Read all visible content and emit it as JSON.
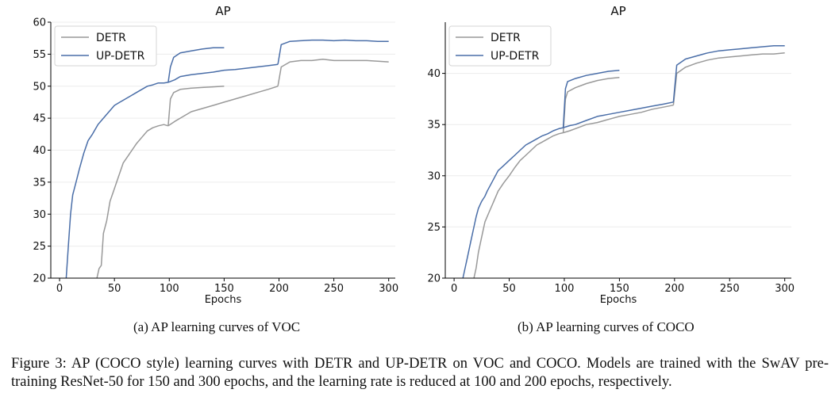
{
  "charts": {
    "a": {
      "caption": "(a) AP learning curves of VOC"
    },
    "b": {
      "caption": "(b) AP learning curves of COCO"
    }
  },
  "figure_caption": "Figure 3: AP (COCO style) learning curves with DETR and UP-DETR on VOC and COCO. Models are trained with the SwAV pre-training ResNet-50 for 150 and 300 epochs, and the learning rate is reduced at 100 and 200 epochs, respectively.",
  "colors": {
    "DETR": "#999999",
    "UP-DETR": "#4a6ea8"
  },
  "chart_data": [
    {
      "type": "line",
      "title": "AP",
      "xlabel": "Epochs",
      "ylabel": "",
      "xlim": [
        -8,
        306
      ],
      "ylim": [
        20,
        60
      ],
      "xticks": [
        0,
        50,
        100,
        150,
        200,
        250,
        300
      ],
      "yticks": [
        20,
        25,
        30,
        35,
        40,
        45,
        50,
        55,
        60
      ],
      "grid": "horizontal",
      "legend": "top-left",
      "series": [
        {
          "name": "DETR",
          "color": "#999999",
          "x": [
            34,
            36,
            38,
            40,
            43,
            46,
            50,
            54,
            58,
            62,
            66,
            70,
            75,
            80,
            85,
            90,
            95,
            99
          ],
          "y": [
            20,
            21.5,
            22,
            27,
            29,
            32,
            34,
            36,
            38,
            39,
            40,
            41,
            42,
            43,
            43.5,
            43.8,
            44,
            43.8
          ]
        },
        {
          "name": "DETR",
          "color": "#999999",
          "x": [
            99,
            101,
            104,
            110,
            120,
            130,
            140,
            150
          ],
          "y": [
            43.8,
            48,
            49,
            49.5,
            49.7,
            49.8,
            49.9,
            50.0
          ]
        },
        {
          "name": "DETR",
          "color": "#999999",
          "x": [
            99,
            105,
            110,
            120,
            130,
            140,
            150,
            160,
            170,
            180,
            190,
            199
          ],
          "y": [
            43.8,
            44.5,
            45,
            46,
            46.5,
            47,
            47.5,
            48,
            48.5,
            49,
            49.5,
            50
          ]
        },
        {
          "name": "DETR",
          "color": "#999999",
          "x": [
            199,
            202,
            210,
            220,
            230,
            240,
            250,
            260,
            270,
            280,
            290,
            300
          ],
          "y": [
            50,
            53,
            53.8,
            54,
            54,
            54.2,
            54,
            54,
            54,
            54,
            53.9,
            53.8
          ]
        },
        {
          "name": "UP-DETR",
          "color": "#4a6ea8",
          "x": [
            6,
            8,
            10,
            12,
            15,
            18,
            22,
            26,
            30,
            35,
            40,
            45,
            50,
            55,
            60,
            65,
            70,
            75,
            80,
            85,
            90,
            95,
            99
          ],
          "y": [
            20,
            25,
            30,
            33,
            35,
            37,
            39.5,
            41.5,
            42.5,
            44,
            45,
            46,
            47,
            47.5,
            48,
            48.5,
            49,
            49.5,
            50,
            50.2,
            50.5,
            50.5,
            50.6
          ]
        },
        {
          "name": "UP-DETR",
          "color": "#4a6ea8",
          "x": [
            99,
            101,
            104,
            110,
            120,
            130,
            140,
            150
          ],
          "y": [
            50.6,
            53,
            54.5,
            55.2,
            55.5,
            55.8,
            56,
            56
          ]
        },
        {
          "name": "UP-DETR",
          "color": "#4a6ea8",
          "x": [
            99,
            105,
            110,
            120,
            130,
            140,
            150,
            160,
            170,
            180,
            190,
            199
          ],
          "y": [
            50.6,
            51,
            51.5,
            51.8,
            52,
            52.2,
            52.5,
            52.6,
            52.8,
            53,
            53.2,
            53.4
          ]
        },
        {
          "name": "UP-DETR",
          "color": "#4a6ea8",
          "x": [
            199,
            202,
            210,
            220,
            230,
            240,
            250,
            260,
            270,
            280,
            290,
            300
          ],
          "y": [
            53.4,
            56.5,
            57,
            57.1,
            57.2,
            57.2,
            57.1,
            57.2,
            57.1,
            57.1,
            57,
            57
          ]
        }
      ]
    },
    {
      "type": "line",
      "title": "AP",
      "xlabel": "Epochs",
      "ylabel": "",
      "xlim": [
        -8,
        306
      ],
      "ylim": [
        20,
        45
      ],
      "xticks": [
        0,
        50,
        100,
        150,
        200,
        250,
        300
      ],
      "yticks": [
        20,
        25,
        30,
        35,
        40
      ],
      "grid": "horizontal",
      "legend": "top-left",
      "series": [
        {
          "name": "DETR",
          "color": "#999999",
          "x": [
            18,
            20,
            22,
            25,
            28,
            32,
            36,
            40,
            45,
            50,
            55,
            60,
            65,
            70,
            75,
            80,
            85,
            90,
            95,
            99
          ],
          "y": [
            20,
            21,
            22.5,
            24,
            25.5,
            26.5,
            27.5,
            28.5,
            29.3,
            30,
            30.8,
            31.5,
            32,
            32.5,
            33,
            33.3,
            33.6,
            33.9,
            34.1,
            34.2
          ]
        },
        {
          "name": "DETR",
          "color": "#999999",
          "x": [
            99,
            101,
            103,
            110,
            120,
            130,
            140,
            150
          ],
          "y": [
            34.2,
            37.5,
            38.2,
            38.6,
            39,
            39.3,
            39.5,
            39.6
          ]
        },
        {
          "name": "DETR",
          "color": "#999999",
          "x": [
            99,
            105,
            110,
            120,
            130,
            140,
            150,
            160,
            170,
            180,
            190,
            199
          ],
          "y": [
            34.2,
            34.4,
            34.6,
            35,
            35.2,
            35.5,
            35.8,
            36,
            36.2,
            36.5,
            36.7,
            36.9
          ]
        },
        {
          "name": "DETR",
          "color": "#999999",
          "x": [
            199,
            202,
            210,
            220,
            230,
            240,
            250,
            260,
            270,
            280,
            290,
            300
          ],
          "y": [
            36.9,
            40,
            40.6,
            41,
            41.3,
            41.5,
            41.6,
            41.7,
            41.8,
            41.9,
            41.9,
            42
          ]
        },
        {
          "name": "UP-DETR",
          "color": "#4a6ea8",
          "x": [
            8,
            10,
            12,
            15,
            18,
            20,
            22,
            25,
            28,
            30,
            35,
            40,
            45,
            50,
            55,
            60,
            65,
            70,
            75,
            80,
            85,
            90,
            95,
            99
          ],
          "y": [
            20,
            21,
            22,
            23.5,
            25,
            26,
            26.8,
            27.5,
            28,
            28.5,
            29.5,
            30.5,
            31,
            31.5,
            32,
            32.5,
            33,
            33.3,
            33.6,
            33.9,
            34.1,
            34.4,
            34.6,
            34.7
          ]
        },
        {
          "name": "UP-DETR",
          "color": "#4a6ea8",
          "x": [
            99,
            101,
            103,
            110,
            120,
            130,
            140,
            150
          ],
          "y": [
            34.7,
            38.5,
            39.2,
            39.5,
            39.8,
            40,
            40.2,
            40.3
          ]
        },
        {
          "name": "UP-DETR",
          "color": "#4a6ea8",
          "x": [
            99,
            105,
            110,
            120,
            130,
            140,
            150,
            160,
            170,
            180,
            190,
            199
          ],
          "y": [
            34.7,
            34.9,
            35,
            35.4,
            35.8,
            36,
            36.2,
            36.4,
            36.6,
            36.8,
            37,
            37.2
          ]
        },
        {
          "name": "UP-DETR",
          "color": "#4a6ea8",
          "x": [
            199,
            202,
            210,
            220,
            230,
            240,
            250,
            260,
            270,
            280,
            290,
            300
          ],
          "y": [
            37.2,
            40.8,
            41.4,
            41.7,
            42,
            42.2,
            42.3,
            42.4,
            42.5,
            42.6,
            42.7,
            42.7
          ]
        }
      ]
    }
  ]
}
